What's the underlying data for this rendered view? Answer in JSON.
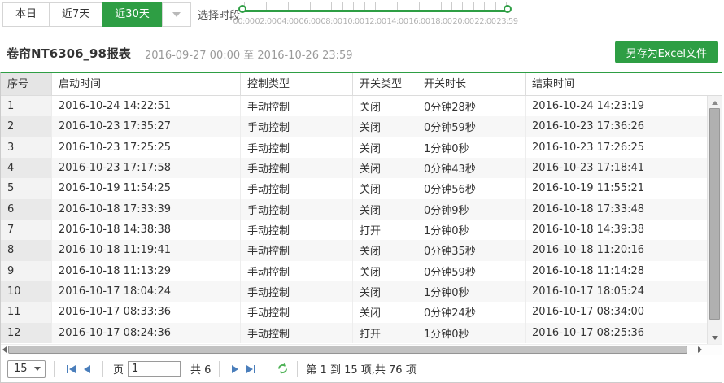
{
  "toolbar": {
    "date_buttons": [
      {
        "label": "本日",
        "active": false
      },
      {
        "label": "近7天",
        "active": false
      },
      {
        "label": "近30天",
        "active": true
      }
    ],
    "time_period_label": "选择时段",
    "slider": {
      "labels": [
        "00:00",
        "02:00",
        "04:00",
        "06:00",
        "08:00",
        "10:00",
        "12:00",
        "14:00",
        "16:00",
        "18:00",
        "20:00",
        "22:00",
        "23:59"
      ],
      "range_start": "00:00",
      "range_end": "23:59"
    }
  },
  "report": {
    "title": "卷帘NT6306_98报表",
    "date_range": "2016-09-27 00:00 至 2016-10-26 23:59",
    "export_button": "另存为Excel文件"
  },
  "table": {
    "columns": [
      "序号",
      "启动时间",
      "控制类型",
      "开关类型",
      "开关时长",
      "结束时间"
    ],
    "rows": [
      [
        "1",
        "2016-10-24 14:22:51",
        "手动控制",
        "关闭",
        "0分钟28秒",
        "2016-10-24 14:23:19"
      ],
      [
        "2",
        "2016-10-23 17:35:27",
        "手动控制",
        "关闭",
        "0分钟59秒",
        "2016-10-23 17:36:26"
      ],
      [
        "3",
        "2016-10-23 17:25:25",
        "手动控制",
        "关闭",
        "1分钟0秒",
        "2016-10-23 17:26:25"
      ],
      [
        "4",
        "2016-10-23 17:17:58",
        "手动控制",
        "关闭",
        "0分钟43秒",
        "2016-10-23 17:18:41"
      ],
      [
        "5",
        "2016-10-19 11:54:25",
        "手动控制",
        "关闭",
        "0分钟56秒",
        "2016-10-19 11:55:21"
      ],
      [
        "6",
        "2016-10-18 17:33:39",
        "手动控制",
        "关闭",
        "0分钟9秒",
        "2016-10-18 17:33:48"
      ],
      [
        "7",
        "2016-10-18 14:38:38",
        "手动控制",
        "打开",
        "1分钟0秒",
        "2016-10-18 14:39:38"
      ],
      [
        "8",
        "2016-10-18 11:19:41",
        "手动控制",
        "关闭",
        "0分钟35秒",
        "2016-10-18 11:20:16"
      ],
      [
        "9",
        "2016-10-18 11:13:29",
        "手动控制",
        "关闭",
        "0分钟59秒",
        "2016-10-18 11:14:28"
      ],
      [
        "10",
        "2016-10-17 18:04:24",
        "手动控制",
        "关闭",
        "1分钟0秒",
        "2016-10-17 18:05:24"
      ],
      [
        "11",
        "2016-10-17 08:33:36",
        "手动控制",
        "关闭",
        "0分钟24秒",
        "2016-10-17 08:34:00"
      ],
      [
        "12",
        "2016-10-17 08:24:36",
        "手动控制",
        "打开",
        "1分钟0秒",
        "2016-10-17 08:25:36"
      ]
    ]
  },
  "pagination": {
    "page_size": "15",
    "page_label": "页",
    "page_value": "1",
    "total_pages_label": "共 6",
    "summary": "第 1 到 15 项,共 76 项"
  },
  "colors": {
    "accent_green": "#2e9e44",
    "pager_arrow_blue": "#4a7ebb",
    "refresh_green": "#4fb257"
  }
}
